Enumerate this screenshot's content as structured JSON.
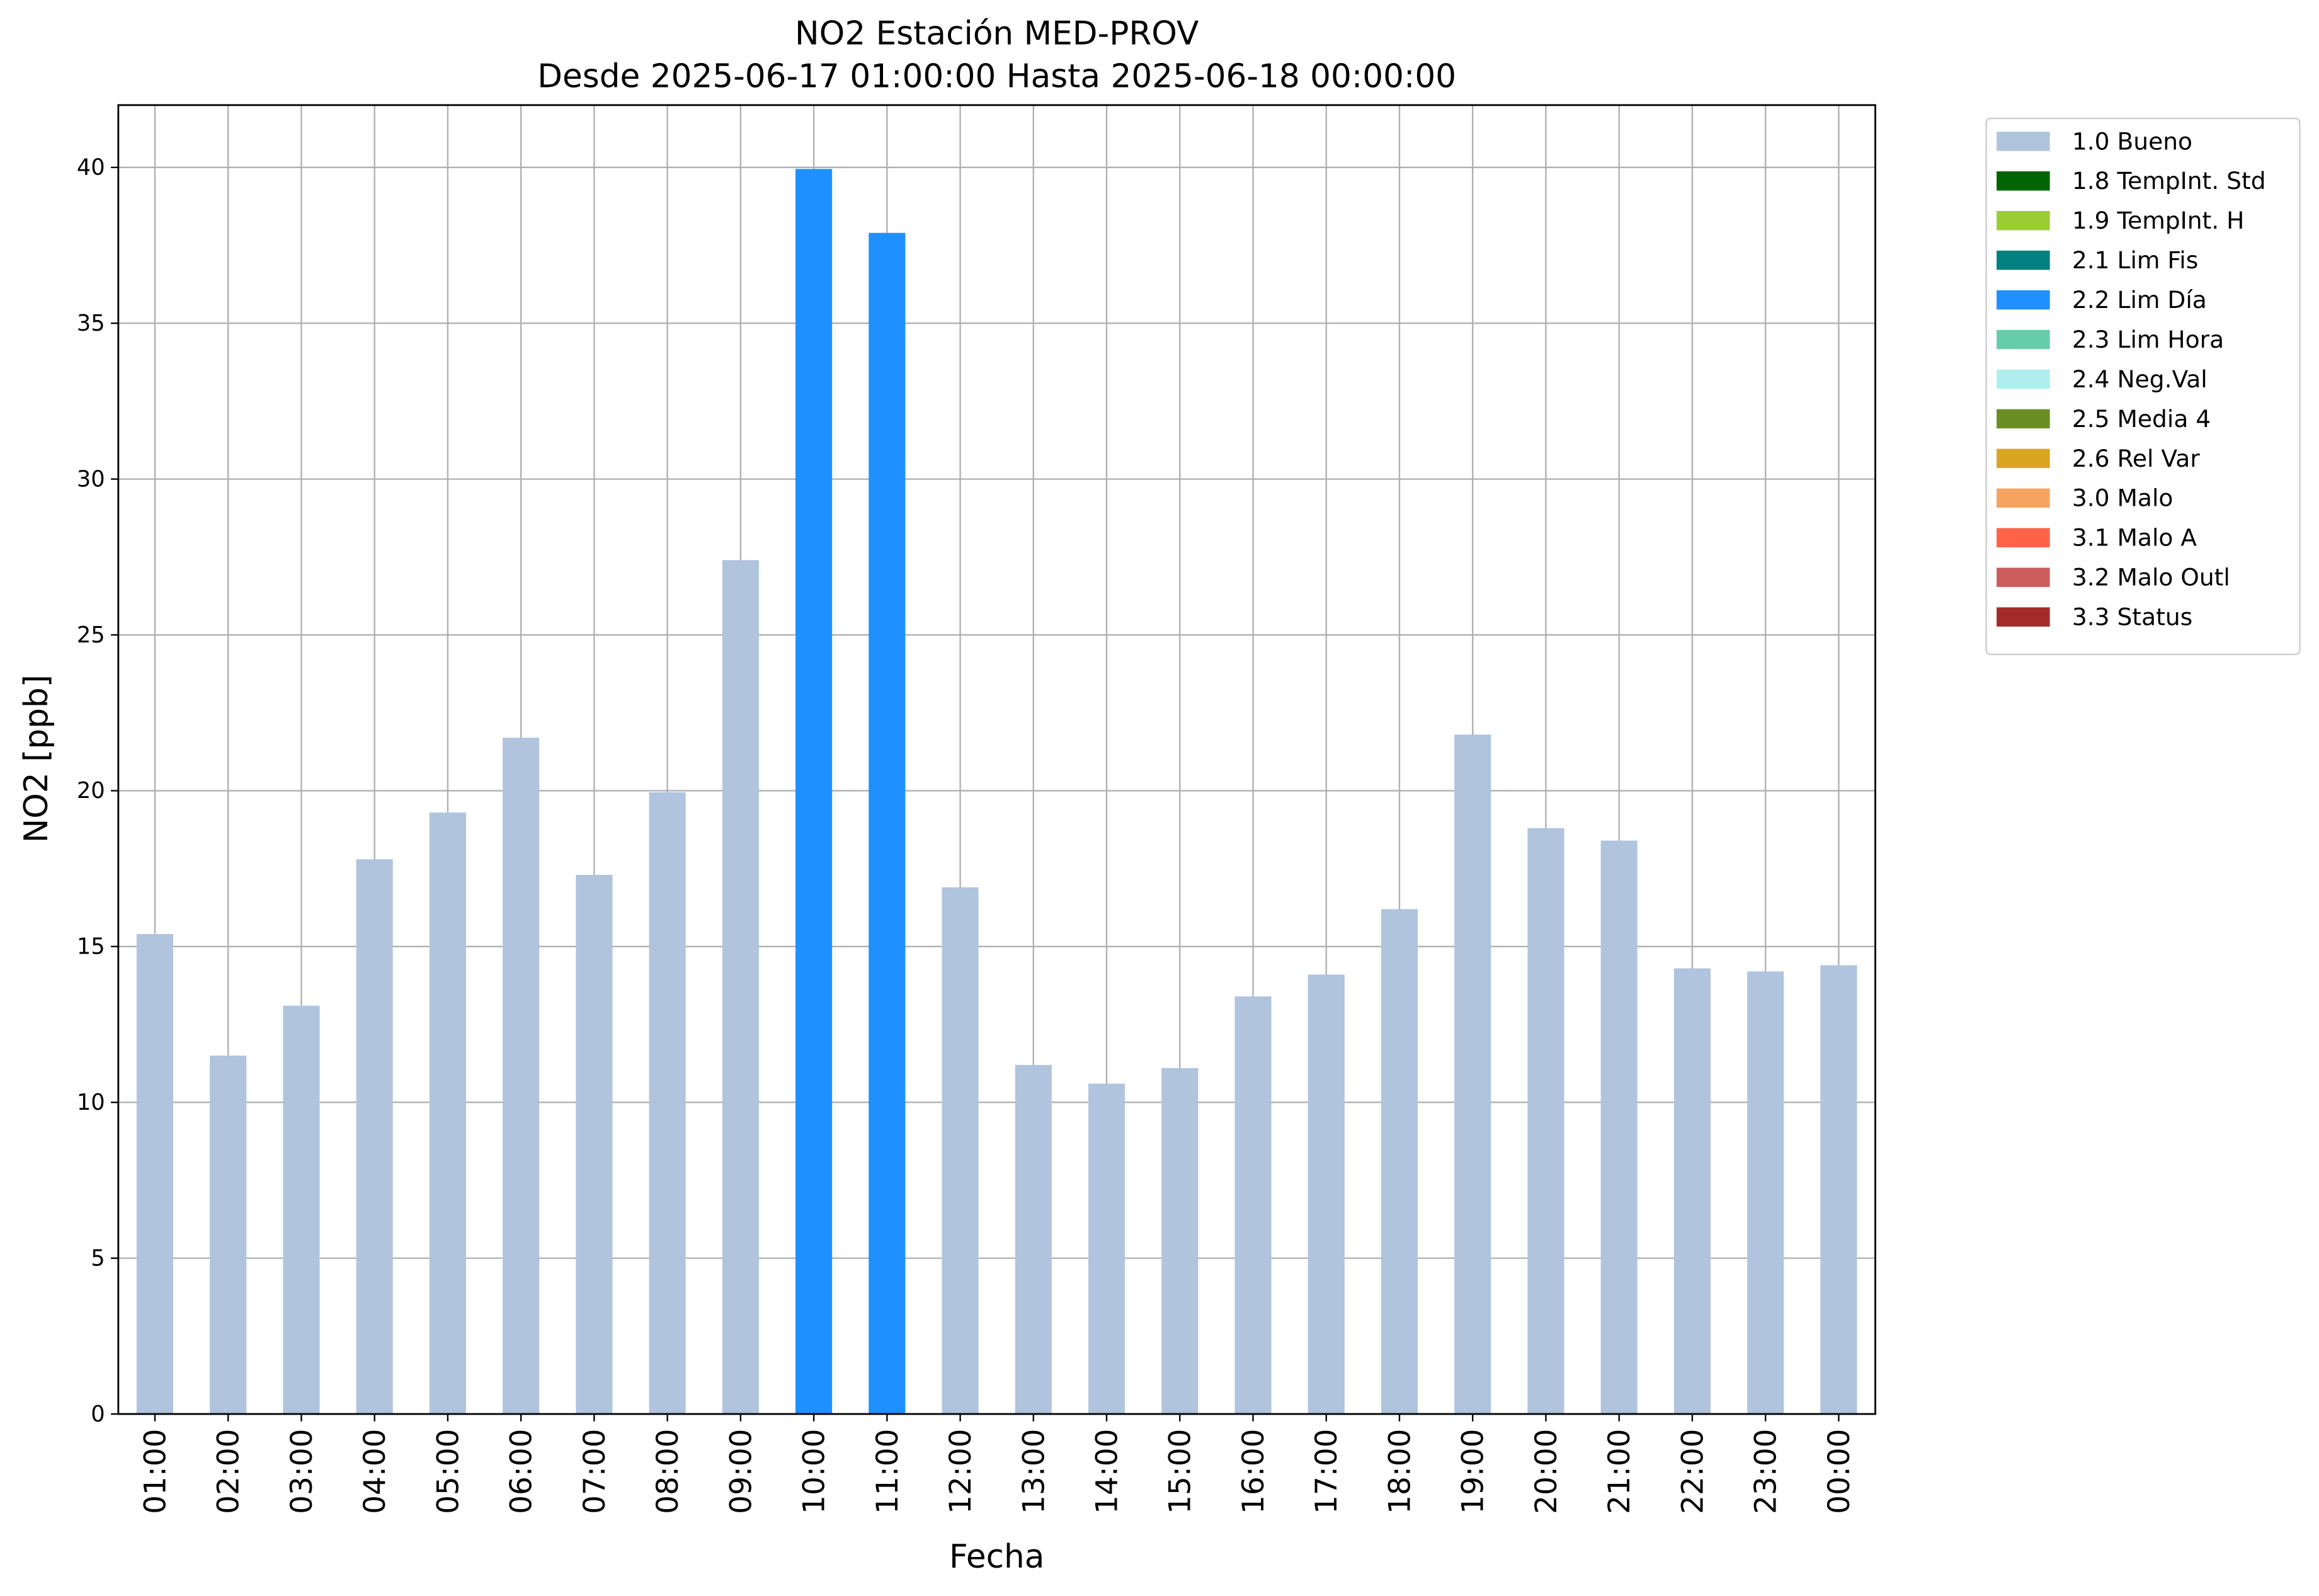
{
  "chart_data": {
    "type": "bar",
    "stacked": true,
    "title": "NO2 Estación MED-PROV",
    "subtitle": "Desde 2025-06-17 01:00:00 Hasta 2025-06-18 00:00:00",
    "x_label": "Fecha",
    "y_label": "NO2 [ppb]",
    "categories": [
      "01:00",
      "02:00",
      "03:00",
      "04:00",
      "05:00",
      "06:00",
      "07:00",
      "08:00",
      "09:00",
      "10:00",
      "11:00",
      "12:00",
      "13:00",
      "14:00",
      "15:00",
      "16:00",
      "17:00",
      "18:00",
      "19:00",
      "20:00",
      "21:00",
      "22:00",
      "23:00",
      "00:00"
    ],
    "series": [
      {
        "name": "1.0 Bueno",
        "color": "#b0c4de",
        "values": [
          15.4,
          11.5,
          13.1,
          17.8,
          19.3,
          21.7,
          17.3,
          19.95,
          27.4,
          null,
          null,
          16.9,
          11.2,
          10.6,
          11.1,
          13.4,
          14.1,
          16.2,
          21.8,
          18.8,
          18.4,
          14.3,
          14.2,
          14.4
        ]
      },
      {
        "name": "1.8 TempInt. Std",
        "color": "#006400",
        "values": [
          null,
          null,
          null,
          null,
          null,
          null,
          null,
          null,
          null,
          null,
          null,
          null,
          null,
          null,
          null,
          null,
          null,
          null,
          null,
          null,
          null,
          null,
          null,
          null
        ]
      },
      {
        "name": "1.9 TempInt. H",
        "color": "#9acd32",
        "values": [
          null,
          null,
          null,
          null,
          null,
          null,
          null,
          null,
          null,
          null,
          null,
          null,
          null,
          null,
          null,
          null,
          null,
          null,
          null,
          null,
          null,
          null,
          null,
          null
        ]
      },
      {
        "name": "2.1 Lim Fis",
        "color": "#008080",
        "values": [
          null,
          null,
          null,
          null,
          null,
          null,
          null,
          null,
          null,
          null,
          null,
          null,
          null,
          null,
          null,
          null,
          null,
          null,
          null,
          null,
          null,
          null,
          null,
          null
        ]
      },
      {
        "name": "2.2 Lim Día",
        "color": "#1e90ff",
        "values": [
          null,
          null,
          null,
          null,
          null,
          null,
          null,
          null,
          null,
          39.95,
          37.9,
          null,
          null,
          null,
          null,
          null,
          null,
          null,
          null,
          null,
          null,
          null,
          null,
          null
        ]
      },
      {
        "name": "2.3 Lim Hora",
        "color": "#66cdaa",
        "values": [
          null,
          null,
          null,
          null,
          null,
          null,
          null,
          null,
          null,
          null,
          null,
          null,
          null,
          null,
          null,
          null,
          null,
          null,
          null,
          null,
          null,
          null,
          null,
          null
        ]
      },
      {
        "name": "2.4 Neg.Val",
        "color": "#afeeee",
        "values": [
          null,
          null,
          null,
          null,
          null,
          null,
          null,
          null,
          null,
          null,
          null,
          null,
          null,
          null,
          null,
          null,
          null,
          null,
          null,
          null,
          null,
          null,
          null,
          null
        ]
      },
      {
        "name": "2.5 Media 4",
        "color": "#6b8e23",
        "values": [
          null,
          null,
          null,
          null,
          null,
          null,
          null,
          null,
          null,
          null,
          null,
          null,
          null,
          null,
          null,
          null,
          null,
          null,
          null,
          null,
          null,
          null,
          null,
          null
        ]
      },
      {
        "name": "2.6 Rel Var",
        "color": "#daa520",
        "values": [
          null,
          null,
          null,
          null,
          null,
          null,
          null,
          null,
          null,
          null,
          null,
          null,
          null,
          null,
          null,
          null,
          null,
          null,
          null,
          null,
          null,
          null,
          null,
          null
        ]
      },
      {
        "name": "3.0 Malo",
        "color": "#f4a460",
        "values": [
          null,
          null,
          null,
          null,
          null,
          null,
          null,
          null,
          null,
          null,
          null,
          null,
          null,
          null,
          null,
          null,
          null,
          null,
          null,
          null,
          null,
          null,
          null,
          null
        ]
      },
      {
        "name": "3.1 Malo A",
        "color": "#ff6347",
        "values": [
          null,
          null,
          null,
          null,
          null,
          null,
          null,
          null,
          null,
          null,
          null,
          null,
          null,
          null,
          null,
          null,
          null,
          null,
          null,
          null,
          null,
          null,
          null,
          null
        ]
      },
      {
        "name": "3.2 Malo Outl",
        "color": "#cd5c5c",
        "values": [
          null,
          null,
          null,
          null,
          null,
          null,
          null,
          null,
          null,
          null,
          null,
          null,
          null,
          null,
          null,
          null,
          null,
          null,
          null,
          null,
          null,
          null,
          null,
          null
        ]
      },
      {
        "name": "3.3 Status",
        "color": "#a52a2a",
        "values": [
          null,
          null,
          null,
          null,
          null,
          null,
          null,
          null,
          null,
          null,
          null,
          null,
          null,
          null,
          null,
          null,
          null,
          null,
          null,
          null,
          null,
          null,
          null,
          null
        ]
      }
    ],
    "ylim": [
      0,
      42
    ],
    "yticks": [
      0,
      5,
      10,
      15,
      20,
      25,
      30,
      35,
      40
    ],
    "grid": true,
    "legend": "outside-upper-right"
  }
}
